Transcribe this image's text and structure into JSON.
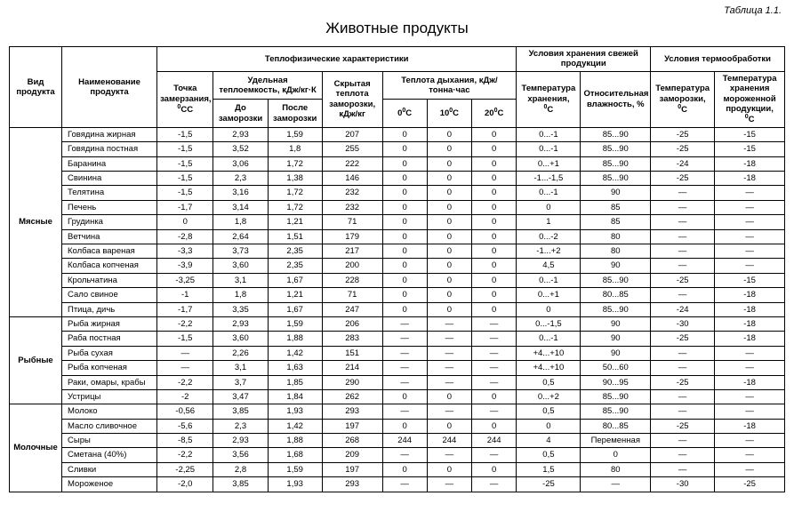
{
  "caption": "Таблица 1.1.",
  "title": "Животные продукты",
  "headers": {
    "product_type": "Вид продукта",
    "product_name": "Наименование продукта",
    "thermo_group": "Теплофизические характеристики",
    "storage_group": "Условия хранения свежей продукции",
    "treatment_group": "Условия термообработки",
    "freeze_point": "Точка замерзания,",
    "heat_capacity": "Удельная теплоемкость, кДж/кг·К",
    "latent_heat": "Скрытая теплота заморозки, кДж/кг",
    "respiration": "Теплота дыхания, кДж/тонна·час",
    "before_freeze": "До заморозки",
    "after_freeze": "После заморозки",
    "t0": "0",
    "t10": "10",
    "t20": "20",
    "storage_temp": "Температура хранения,",
    "humidity": "Относительная влажность, %",
    "freeze_temp": "Температура заморозки,",
    "frozen_storage": "Температура хранения мороженной продукции,",
    "deg": "°C"
  },
  "categories": [
    {
      "name": "Мясные",
      "rows": [
        {
          "n": "Говядина жирная",
          "v": [
            "-1,5",
            "2,93",
            "1,59",
            "207",
            "0",
            "0",
            "0",
            "0...-1",
            "85...90",
            "-25",
            "-15"
          ]
        },
        {
          "n": "Говядина постная",
          "v": [
            "-1,5",
            "3,52",
            "1,8",
            "255",
            "0",
            "0",
            "0",
            "0...-1",
            "85...90",
            "-25",
            "-15"
          ]
        },
        {
          "n": "Баранина",
          "v": [
            "-1,5",
            "3,06",
            "1,72",
            "222",
            "0",
            "0",
            "0",
            "0...+1",
            "85...90",
            "-24",
            "-18"
          ]
        },
        {
          "n": "Свинина",
          "v": [
            "-1,5",
            "2,3",
            "1,38",
            "146",
            "0",
            "0",
            "0",
            "-1...-1,5",
            "85...90",
            "-25",
            "-18"
          ]
        },
        {
          "n": "Телятина",
          "v": [
            "-1,5",
            "3,16",
            "1,72",
            "232",
            "0",
            "0",
            "0",
            "0...-1",
            "90",
            "—",
            "—"
          ]
        },
        {
          "n": "Печень",
          "v": [
            "-1,7",
            "3,14",
            "1,72",
            "232",
            "0",
            "0",
            "0",
            "0",
            "85",
            "—",
            "—"
          ]
        },
        {
          "n": "Грудинка",
          "v": [
            "0",
            "1,8",
            "1,21",
            "71",
            "0",
            "0",
            "0",
            "1",
            "85",
            "—",
            "—"
          ]
        },
        {
          "n": "Ветчина",
          "v": [
            "-2,8",
            "2,64",
            "1,51",
            "179",
            "0",
            "0",
            "0",
            "0...-2",
            "80",
            "—",
            "—"
          ]
        },
        {
          "n": "Колбаса вареная",
          "v": [
            "-3,3",
            "3,73",
            "2,35",
            "217",
            "0",
            "0",
            "0",
            "-1...+2",
            "80",
            "—",
            "—"
          ]
        },
        {
          "n": "Колбаса копченая",
          "v": [
            "-3,9",
            "3,60",
            "2,35",
            "200",
            "0",
            "0",
            "0",
            "4,5",
            "90",
            "—",
            "—"
          ]
        },
        {
          "n": "Крольчатина",
          "v": [
            "-3,25",
            "3,1",
            "1,67",
            "228",
            "0",
            "0",
            "0",
            "0...-1",
            "85...90",
            "-25",
            "-15"
          ]
        },
        {
          "n": "Сало свиное",
          "v": [
            "-1",
            "1,8",
            "1,21",
            "71",
            "0",
            "0",
            "0",
            "0...+1",
            "80...85",
            "—",
            "-18"
          ]
        },
        {
          "n": "Птица, дичь",
          "v": [
            "-1,7",
            "3,35",
            "1,67",
            "247",
            "0",
            "0",
            "0",
            "0",
            "85...90",
            "-24",
            "-18"
          ]
        }
      ]
    },
    {
      "name": "Рыбные",
      "rows": [
        {
          "n": "Рыба жирная",
          "v": [
            "-2,2",
            "2,93",
            "1,59",
            "206",
            "—",
            "—",
            "—",
            "0...-1,5",
            "90",
            "-30",
            "-18"
          ]
        },
        {
          "n": "Раба постная",
          "v": [
            "-1,5",
            "3,60",
            "1,88",
            "283",
            "—",
            "—",
            "—",
            "0...-1",
            "90",
            "-25",
            "-18"
          ]
        },
        {
          "n": "Рыба сухая",
          "v": [
            "—",
            "2,26",
            "1,42",
            "151",
            "—",
            "—",
            "—",
            "+4...+10",
            "90",
            "—",
            "—"
          ]
        },
        {
          "n": "Рыба копченая",
          "v": [
            "—",
            "3,1",
            "1,63",
            "214",
            "—",
            "—",
            "—",
            "+4...+10",
            "50...60",
            "—",
            "—"
          ]
        },
        {
          "n": "Раки, омары, крабы",
          "v": [
            "-2,2",
            "3,7",
            "1,85",
            "290",
            "—",
            "—",
            "—",
            "0,5",
            "90...95",
            "-25",
            "-18"
          ]
        },
        {
          "n": "Устрицы",
          "v": [
            "-2",
            "3,47",
            "1,84",
            "262",
            "0",
            "0",
            "0",
            "0...+2",
            "85...90",
            "—",
            "—"
          ]
        }
      ]
    },
    {
      "name": "Молочные",
      "rows": [
        {
          "n": "Молоко",
          "v": [
            "-0,56",
            "3,85",
            "1,93",
            "293",
            "—",
            "—",
            "—",
            "0,5",
            "85...90",
            "—",
            "—"
          ]
        },
        {
          "n": "Масло сливочное",
          "v": [
            "-5,6",
            "2,3",
            "1,42",
            "197",
            "0",
            "0",
            "0",
            "0",
            "80...85",
            "-25",
            "-18"
          ]
        },
        {
          "n": "Сыры",
          "v": [
            "-8,5",
            "2,93",
            "1,88",
            "268",
            "244",
            "244",
            "244",
            "4",
            "Переменная",
            "—",
            "—"
          ]
        },
        {
          "n": "Сметана (40%)",
          "v": [
            "-2,2",
            "3,56",
            "1,68",
            "209",
            "—",
            "—",
            "—",
            "0,5",
            "0",
            "—",
            "—"
          ]
        },
        {
          "n": "Сливки",
          "v": [
            "-2,25",
            "2,8",
            "1,59",
            "197",
            "0",
            "0",
            "0",
            "1,5",
            "80",
            "—",
            "—"
          ]
        },
        {
          "n": "Мороженое",
          "v": [
            "-2,0",
            "3,85",
            "1,93",
            "293",
            "—",
            "—",
            "—",
            "-25",
            "—",
            "-30",
            "-25"
          ]
        }
      ]
    }
  ]
}
